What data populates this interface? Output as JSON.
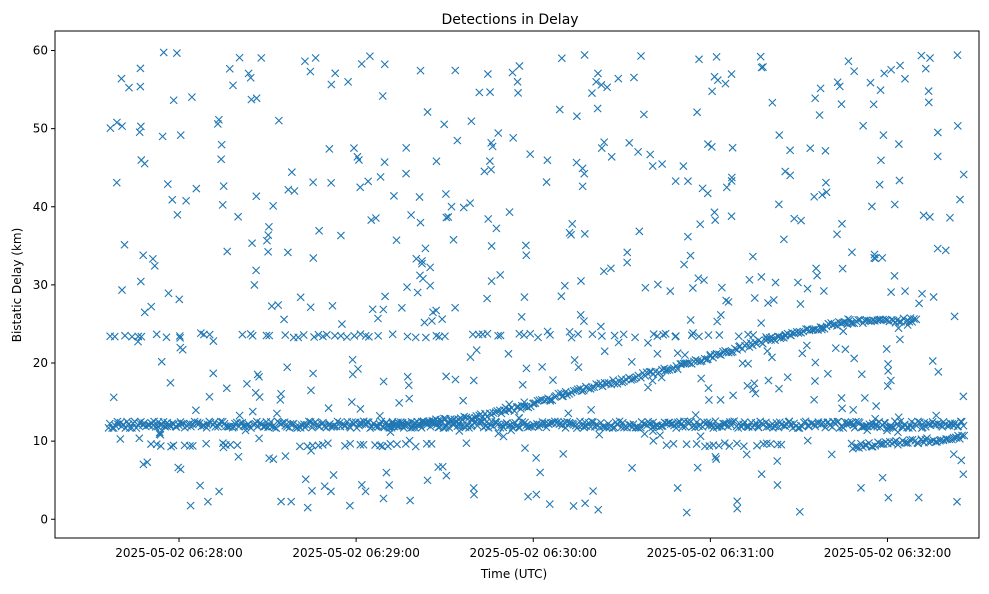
{
  "chart_data": {
    "type": "scatter",
    "title": "Detections in Delay",
    "xlabel": "Time (UTC)",
    "ylabel": "Bistatic Delay (km)",
    "x_axis_type": "time",
    "xlim": [
      "2025-05-02 06:27:18",
      "2025-05-02 06:32:31"
    ],
    "ylim": [
      -2.4,
      62.5
    ],
    "x_ticks": [
      "2025-05-02 06:28:00",
      "2025-05-02 06:29:00",
      "2025-05-02 06:30:00",
      "2025-05-02 06:31:00",
      "2025-05-02 06:32:00"
    ],
    "y_ticks": [
      0,
      10,
      20,
      30,
      40,
      50,
      60
    ],
    "marker": "x",
    "color": "#1f77b4",
    "grid": false,
    "legend": "none",
    "time_start": "2025-05-02 06:27:36",
    "time_end": "2025-05-02 06:32:26",
    "series": [
      {
        "label": "clutter band ~12 km",
        "pattern": "flat band",
        "y_start": 12.1,
        "y_end": 12.1,
        "time_ranges": [
          [
            "2025-05-02 06:27:36",
            "2025-05-02 06:29:51"
          ],
          [
            "2025-05-02 06:29:51",
            "2025-05-02 06:32:26"
          ]
        ]
      },
      {
        "label": "rising track",
        "pattern": "curve",
        "points": [
          [
            "2025-05-02 06:29:10",
            12.0
          ],
          [
            "2025-05-02 06:29:40",
            13.0
          ],
          [
            "2025-05-02 06:30:00",
            14.7
          ],
          [
            "2025-05-02 06:30:10",
            16.0
          ],
          [
            "2025-05-02 06:30:30",
            17.8
          ],
          [
            "2025-05-02 06:30:50",
            19.6
          ],
          [
            "2025-05-02 06:31:10",
            22.0
          ],
          [
            "2025-05-02 06:31:30",
            24.0
          ],
          [
            "2025-05-02 06:31:45",
            25.2
          ],
          [
            "2025-05-02 06:32:10",
            25.5
          ]
        ]
      },
      {
        "label": "rising lower track",
        "pattern": "line",
        "points": [
          [
            "2025-05-02 06:31:48",
            9.3
          ],
          [
            "2025-05-02 06:32:26",
            10.5
          ]
        ]
      },
      {
        "label": "horizontal band ~23.5 km",
        "pattern": "sparse band",
        "y_start": 23.5,
        "y_end": 23.5,
        "time_ranges": [
          [
            "2025-05-02 06:27:36",
            "2025-05-02 06:31:30"
          ]
        ]
      },
      {
        "label": "band ~9.5 km",
        "pattern": "sparse band",
        "y_start": 9.5,
        "y_end": 9.5,
        "time_ranges": [
          [
            "2025-05-02 06:27:50",
            "2025-05-02 06:28:20"
          ],
          [
            "2025-05-02 06:28:40",
            "2025-05-02 06:29:25"
          ],
          [
            "2025-05-02 06:30:45",
            "2025-05-02 06:31:25"
          ]
        ]
      },
      {
        "label": "noise",
        "pattern": "random",
        "count": 560,
        "y_range": [
          0.8,
          59.8
        ]
      }
    ]
  }
}
